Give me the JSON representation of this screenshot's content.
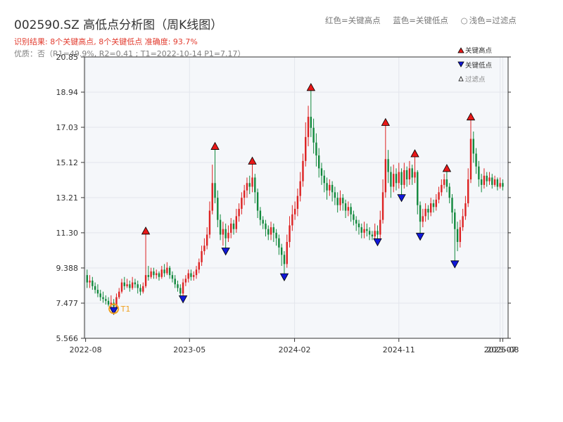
{
  "header": {
    "title": "002590.SZ 高低点分析图（周K线图）",
    "result_text": "识别结果: 8个关键高点, 8个关键低点  准确度: 93.7%",
    "quality_text": "优质：否（R1=49.9%, R2=0.41 ; T1=2022-10-14 P1=7.17）"
  },
  "legend_top": {
    "red": "红色=关键高点",
    "blue": "蓝色=关键低点",
    "circle_symbol": "○",
    "light": "浅色=过滤点"
  },
  "legend_box": {
    "high": "关键高点",
    "low": "关键低点",
    "filtered": "过滤点"
  },
  "colors": {
    "up": "#dd2222",
    "down": "#12893d",
    "high_marker": "#e81818",
    "low_marker": "#1018d8",
    "t1_marker": "#f0a020",
    "axis": "#333333",
    "grid": "#e3e6ec",
    "plot_bg": "#f5f7fa"
  },
  "chart_data": {
    "type": "candlestick",
    "title": "002590.SZ 高低点分析图（周K线图）",
    "x_axis_type": "date",
    "xlim": [
      "2022-07-29",
      "2025-08-15"
    ],
    "ylim": [
      5.566,
      20.85
    ],
    "y_ticks": [
      5.566,
      7.477,
      9.388,
      11.3,
      13.21,
      15.12,
      17.03,
      18.94,
      20.85
    ],
    "y_tick_labels": [
      "5.566",
      "7.477",
      "9.388",
      "11.30",
      "13.21",
      "15.12",
      "17.03",
      "18.94",
      "20.85"
    ],
    "x_ticks": [
      "2022-08-01",
      "2023-05-01",
      "2024-02-01",
      "2024-11-01",
      "2025-07-25",
      "2025-08-01"
    ],
    "x_tick_labels": [
      "2022-08",
      "2023-05",
      "2024-02",
      "2024-11",
      "2025-07",
      "2025-08"
    ],
    "key_highs": [
      {
        "date": "2023-01-06",
        "price": 11.3
      },
      {
        "date": "2023-07-07",
        "price": 15.9
      },
      {
        "date": "2023-10-13",
        "price": 15.1
      },
      {
        "date": "2024-03-15",
        "price": 19.1
      },
      {
        "date": "2024-09-27",
        "price": 17.2
      },
      {
        "date": "2024-12-13",
        "price": 15.5
      },
      {
        "date": "2025-03-07",
        "price": 14.7
      },
      {
        "date": "2025-05-09",
        "price": 17.5
      }
    ],
    "key_lows": [
      {
        "date": "2023-04-14",
        "price": 7.8
      },
      {
        "date": "2023-08-04",
        "price": 10.4
      },
      {
        "date": "2024-01-05",
        "price": 9.0
      },
      {
        "date": "2024-09-06",
        "price": 10.9
      },
      {
        "date": "2024-11-08",
        "price": 13.3
      },
      {
        "date": "2024-12-27",
        "price": 11.2
      },
      {
        "date": "2025-03-28",
        "price": 9.7
      },
      {
        "date": "2022-10-14",
        "price": 7.17
      }
    ],
    "t1": {
      "label": "T1",
      "date": "2022-10-14",
      "price": 7.17
    },
    "candles": [
      [
        "2022-08-05",
        9.0,
        8.6,
        9.3,
        8.3
      ],
      [
        "2022-08-12",
        8.6,
        8.7,
        9.0,
        8.3
      ],
      [
        "2022-08-19",
        8.7,
        8.4,
        8.9,
        8.2
      ],
      [
        "2022-08-26",
        8.4,
        8.2,
        8.6,
        8.0
      ],
      [
        "2022-09-02",
        8.2,
        8.0,
        8.5,
        7.8
      ],
      [
        "2022-09-09",
        8.0,
        7.8,
        8.2,
        7.6
      ],
      [
        "2022-09-16",
        7.8,
        7.7,
        8.1,
        7.5
      ],
      [
        "2022-09-23",
        7.7,
        7.6,
        7.9,
        7.4
      ],
      [
        "2022-09-30",
        7.6,
        7.4,
        7.8,
        7.3
      ],
      [
        "2022-10-07",
        7.4,
        7.5,
        7.9,
        7.2
      ],
      [
        "2022-10-14",
        7.5,
        7.3,
        7.7,
        7.17
      ],
      [
        "2022-10-21",
        7.3,
        7.8,
        8.0,
        7.2
      ],
      [
        "2022-10-28",
        7.8,
        8.1,
        8.3,
        7.7
      ],
      [
        "2022-11-04",
        8.1,
        8.6,
        8.8,
        8.0
      ],
      [
        "2022-11-11",
        8.6,
        8.4,
        8.9,
        8.2
      ],
      [
        "2022-11-18",
        8.4,
        8.5,
        8.8,
        8.3
      ],
      [
        "2022-11-25",
        8.5,
        8.3,
        8.7,
        8.1
      ],
      [
        "2022-12-02",
        8.3,
        8.6,
        8.9,
        8.2
      ],
      [
        "2022-12-09",
        8.6,
        8.5,
        8.8,
        8.3
      ],
      [
        "2022-12-16",
        8.5,
        8.3,
        8.7,
        8.0
      ],
      [
        "2022-12-23",
        8.3,
        8.1,
        8.5,
        7.9
      ],
      [
        "2022-12-30",
        8.1,
        8.4,
        8.6,
        8.0
      ],
      [
        "2023-01-06",
        8.4,
        9.0,
        11.3,
        8.3
      ],
      [
        "2023-01-13",
        9.0,
        8.9,
        9.5,
        8.7
      ],
      [
        "2023-01-20",
        8.9,
        9.2,
        9.4,
        8.8
      ],
      [
        "2023-01-27",
        9.2,
        9.0,
        9.4,
        8.8
      ],
      [
        "2023-02-03",
        9.0,
        9.1,
        9.3,
        8.8
      ],
      [
        "2023-02-10",
        9.1,
        8.9,
        9.2,
        8.7
      ],
      [
        "2023-02-17",
        8.9,
        9.3,
        9.5,
        8.8
      ],
      [
        "2023-02-24",
        9.3,
        9.1,
        9.6,
        8.9
      ],
      [
        "2023-03-03",
        9.1,
        9.4,
        9.7,
        9.0
      ],
      [
        "2023-03-10",
        9.4,
        9.0,
        9.5,
        8.8
      ],
      [
        "2023-03-17",
        9.0,
        8.8,
        9.2,
        8.6
      ],
      [
        "2023-03-24",
        8.8,
        8.5,
        9.0,
        8.3
      ],
      [
        "2023-03-31",
        8.5,
        8.3,
        8.7,
        8.1
      ],
      [
        "2023-04-07",
        8.3,
        8.0,
        8.5,
        7.9
      ],
      [
        "2023-04-14",
        8.0,
        8.6,
        8.8,
        7.8
      ],
      [
        "2023-04-21",
        8.6,
        8.8,
        9.0,
        8.4
      ],
      [
        "2023-04-28",
        8.8,
        9.1,
        9.3,
        8.6
      ],
      [
        "2023-05-05",
        9.1,
        8.9,
        9.3,
        8.7
      ],
      [
        "2023-05-12",
        8.9,
        9.0,
        9.2,
        8.7
      ],
      [
        "2023-05-19",
        9.0,
        9.3,
        9.5,
        8.8
      ],
      [
        "2023-05-26",
        9.3,
        9.7,
        9.9,
        9.1
      ],
      [
        "2023-06-02",
        9.7,
        10.3,
        10.6,
        9.5
      ],
      [
        "2023-06-09",
        10.3,
        10.6,
        11.0,
        10.1
      ],
      [
        "2023-06-16",
        10.6,
        11.2,
        11.6,
        10.4
      ],
      [
        "2023-06-23",
        11.2,
        12.5,
        13.0,
        11.0
      ],
      [
        "2023-06-30",
        12.5,
        14.0,
        15.0,
        12.3
      ],
      [
        "2023-07-07",
        14.0,
        13.2,
        15.9,
        12.9
      ],
      [
        "2023-07-14",
        13.2,
        12.0,
        13.6,
        11.6
      ],
      [
        "2023-07-21",
        12.0,
        11.2,
        12.3,
        10.9
      ],
      [
        "2023-07-28",
        11.2,
        11.5,
        11.9,
        10.6
      ],
      [
        "2023-08-04",
        11.5,
        11.0,
        11.8,
        10.4
      ],
      [
        "2023-08-11",
        11.0,
        11.3,
        11.7,
        10.8
      ],
      [
        "2023-08-18",
        11.3,
        11.8,
        12.1,
        11.0
      ],
      [
        "2023-08-25",
        11.8,
        11.5,
        12.0,
        11.2
      ],
      [
        "2023-09-01",
        11.5,
        12.2,
        12.6,
        11.3
      ],
      [
        "2023-09-08",
        12.2,
        12.6,
        12.9,
        11.9
      ],
      [
        "2023-09-15",
        12.6,
        13.2,
        13.5,
        12.3
      ],
      [
        "2023-09-22",
        13.2,
        13.6,
        13.9,
        12.8
      ],
      [
        "2023-09-29",
        13.6,
        14.0,
        14.3,
        13.2
      ],
      [
        "2023-10-06",
        14.0,
        13.8,
        14.4,
        13.4
      ],
      [
        "2023-10-13",
        13.8,
        14.3,
        15.1,
        13.5
      ],
      [
        "2023-10-20",
        14.3,
        13.5,
        14.5,
        12.9
      ],
      [
        "2023-10-27",
        13.5,
        12.5,
        13.7,
        12.1
      ],
      [
        "2023-11-03",
        12.5,
        12.0,
        12.7,
        11.7
      ],
      [
        "2023-11-10",
        12.0,
        11.8,
        12.2,
        11.5
      ],
      [
        "2023-11-17",
        11.8,
        11.5,
        12.0,
        11.1
      ],
      [
        "2023-11-24",
        11.5,
        11.2,
        11.7,
        10.9
      ],
      [
        "2023-12-01",
        11.2,
        11.6,
        11.9,
        10.9
      ],
      [
        "2023-12-08",
        11.6,
        11.3,
        11.8,
        10.8
      ],
      [
        "2023-12-15",
        11.3,
        11.0,
        11.5,
        10.6
      ],
      [
        "2023-12-22",
        11.0,
        10.5,
        11.2,
        10.1
      ],
      [
        "2023-12-29",
        10.5,
        10.1,
        10.7,
        9.5
      ],
      [
        "2024-01-05",
        10.1,
        9.6,
        10.3,
        9.0
      ],
      [
        "2024-01-12",
        9.6,
        10.8,
        11.2,
        9.4
      ],
      [
        "2024-01-19",
        10.8,
        11.7,
        12.2,
        10.5
      ],
      [
        "2024-01-26",
        11.7,
        12.3,
        12.8,
        11.4
      ],
      [
        "2024-02-02",
        12.3,
        12.6,
        13.0,
        12.0
      ],
      [
        "2024-02-09",
        12.6,
        13.3,
        13.7,
        12.2
      ],
      [
        "2024-02-16",
        13.3,
        14.1,
        14.6,
        13.0
      ],
      [
        "2024-02-23",
        14.1,
        15.2,
        15.6,
        13.8
      ],
      [
        "2024-03-01",
        15.2,
        16.5,
        17.3,
        14.9
      ],
      [
        "2024-03-08",
        16.5,
        17.6,
        18.2,
        16.0
      ],
      [
        "2024-03-15",
        17.6,
        17.0,
        19.1,
        16.5
      ],
      [
        "2024-03-22",
        17.0,
        16.2,
        17.5,
        15.6
      ],
      [
        "2024-03-29",
        16.2,
        15.5,
        16.7,
        14.9
      ],
      [
        "2024-04-05",
        15.5,
        14.8,
        15.9,
        14.3
      ],
      [
        "2024-04-12",
        14.8,
        14.4,
        15.1,
        13.9
      ],
      [
        "2024-04-19",
        14.4,
        14.0,
        14.7,
        13.5
      ],
      [
        "2024-04-26",
        14.0,
        13.6,
        14.3,
        13.1
      ],
      [
        "2024-05-03",
        13.6,
        13.9,
        14.2,
        13.3
      ],
      [
        "2024-05-10",
        13.9,
        13.5,
        14.1,
        13.0
      ],
      [
        "2024-05-17",
        13.5,
        13.2,
        13.8,
        12.8
      ],
      [
        "2024-05-24",
        13.2,
        12.8,
        13.5,
        12.4
      ],
      [
        "2024-05-31",
        12.8,
        13.2,
        13.6,
        12.5
      ],
      [
        "2024-06-07",
        13.2,
        12.9,
        13.4,
        12.5
      ],
      [
        "2024-06-14",
        12.9,
        12.5,
        13.1,
        12.1
      ],
      [
        "2024-06-21",
        12.5,
        12.7,
        13.0,
        12.2
      ],
      [
        "2024-06-28",
        12.7,
        12.3,
        12.9,
        11.9
      ],
      [
        "2024-07-05",
        12.3,
        12.0,
        12.5,
        11.7
      ],
      [
        "2024-07-12",
        12.0,
        11.8,
        12.2,
        11.4
      ],
      [
        "2024-07-19",
        11.8,
        11.6,
        12.0,
        11.2
      ],
      [
        "2024-07-26",
        11.6,
        11.3,
        11.8,
        11.0
      ],
      [
        "2024-08-02",
        11.3,
        11.5,
        11.9,
        11.0
      ],
      [
        "2024-08-09",
        11.5,
        11.4,
        11.8,
        11.1
      ],
      [
        "2024-08-16",
        11.4,
        11.2,
        11.6,
        10.9
      ],
      [
        "2024-08-23",
        11.2,
        11.1,
        11.4,
        10.9
      ],
      [
        "2024-08-30",
        11.1,
        11.4,
        11.8,
        10.9
      ],
      [
        "2024-09-06",
        11.4,
        11.2,
        11.7,
        10.9
      ],
      [
        "2024-09-13",
        11.2,
        12.0,
        12.5,
        11.0
      ],
      [
        "2024-09-20",
        12.0,
        13.5,
        14.2,
        11.8
      ],
      [
        "2024-09-27",
        13.5,
        15.3,
        17.2,
        13.2
      ],
      [
        "2024-10-04",
        15.3,
        14.6,
        15.8,
        14.0
      ],
      [
        "2024-10-11",
        14.6,
        13.8,
        14.9,
        13.2
      ],
      [
        "2024-10-18",
        13.8,
        14.5,
        15.0,
        13.5
      ],
      [
        "2024-10-25",
        14.5,
        14.0,
        14.8,
        13.6
      ],
      [
        "2024-11-01",
        14.0,
        14.6,
        15.1,
        13.7
      ],
      [
        "2024-11-08",
        14.6,
        13.9,
        14.8,
        13.3
      ],
      [
        "2024-11-15",
        13.9,
        14.7,
        15.1,
        13.7
      ],
      [
        "2024-11-22",
        14.7,
        14.2,
        14.9,
        13.8
      ],
      [
        "2024-11-29",
        14.2,
        14.8,
        15.2,
        13.9
      ],
      [
        "2024-12-06",
        14.8,
        14.3,
        15.0,
        13.9
      ],
      [
        "2024-12-13",
        14.3,
        14.6,
        15.5,
        14.0
      ],
      [
        "2024-12-20",
        14.6,
        12.8,
        14.7,
        12.3
      ],
      [
        "2024-12-27",
        12.8,
        11.9,
        13.0,
        11.2
      ],
      [
        "2025-01-03",
        11.9,
        12.2,
        12.6,
        11.6
      ],
      [
        "2025-01-10",
        12.2,
        12.6,
        12.9,
        11.9
      ],
      [
        "2025-01-17",
        12.6,
        12.4,
        12.8,
        12.0
      ],
      [
        "2025-01-24",
        12.4,
        12.9,
        13.2,
        12.2
      ],
      [
        "2025-01-31",
        12.9,
        12.7,
        13.1,
        12.4
      ],
      [
        "2025-02-07",
        12.7,
        13.1,
        13.4,
        12.5
      ],
      [
        "2025-02-14",
        13.1,
        13.5,
        13.8,
        12.9
      ],
      [
        "2025-02-21",
        13.5,
        13.9,
        14.2,
        13.3
      ],
      [
        "2025-02-28",
        13.9,
        14.2,
        14.5,
        13.7
      ],
      [
        "2025-03-07",
        14.2,
        13.8,
        14.7,
        13.5
      ],
      [
        "2025-03-14",
        13.8,
        13.2,
        14.0,
        12.9
      ],
      [
        "2025-03-21",
        13.2,
        12.4,
        13.4,
        11.8
      ],
      [
        "2025-03-28",
        12.4,
        11.5,
        12.6,
        9.7
      ],
      [
        "2025-04-04",
        11.5,
        10.8,
        11.9,
        10.3
      ],
      [
        "2025-04-11",
        10.8,
        11.6,
        12.0,
        10.5
      ],
      [
        "2025-04-18",
        11.6,
        12.2,
        12.6,
        11.4
      ],
      [
        "2025-04-25",
        12.2,
        12.9,
        13.3,
        12.0
      ],
      [
        "2025-05-02",
        12.9,
        14.2,
        14.8,
        12.7
      ],
      [
        "2025-05-09",
        14.2,
        16.4,
        17.5,
        14.0
      ],
      [
        "2025-05-16",
        16.4,
        15.6,
        16.8,
        15.1
      ],
      [
        "2025-05-23",
        15.6,
        14.9,
        15.9,
        14.5
      ],
      [
        "2025-05-30",
        14.9,
        14.2,
        15.2,
        13.8
      ],
      [
        "2025-06-06",
        14.2,
        13.9,
        14.5,
        13.5
      ],
      [
        "2025-06-13",
        13.9,
        14.4,
        14.8,
        13.7
      ],
      [
        "2025-06-20",
        14.4,
        14.1,
        14.6,
        13.8
      ],
      [
        "2025-06-27",
        14.1,
        14.3,
        14.6,
        13.9
      ],
      [
        "2025-07-04",
        14.3,
        13.9,
        14.5,
        13.7
      ],
      [
        "2025-07-11",
        13.9,
        14.2,
        14.4,
        13.8
      ],
      [
        "2025-07-18",
        14.2,
        13.8,
        14.3,
        13.6
      ],
      [
        "2025-07-25",
        13.8,
        14.0,
        14.3,
        13.7
      ],
      [
        "2025-08-01",
        14.0,
        13.8,
        14.2,
        13.6
      ]
    ]
  }
}
